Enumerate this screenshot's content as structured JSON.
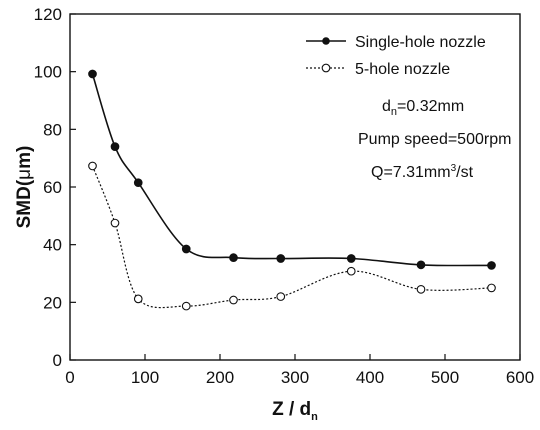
{
  "chart_data": {
    "type": "line",
    "xlabel_main": "Z / d",
    "xlabel_sub": "n",
    "ylabel_pre": "SMD(",
    "ylabel_mu": "μ",
    "ylabel_post": "m)",
    "xlim": [
      0,
      600
    ],
    "ylim": [
      0,
      120
    ],
    "xticks": [
      0,
      100,
      200,
      300,
      400,
      500,
      600
    ],
    "yticks": [
      0,
      20,
      40,
      60,
      80,
      100,
      120
    ],
    "grid": false,
    "legend_position": "top-right",
    "series": [
      {
        "name": "Single-hole nozzle",
        "marker": "filled-circle",
        "line_style": "solid",
        "color": "#111111",
        "x": [
          30,
          60,
          91,
          155,
          218,
          281,
          375,
          468,
          562
        ],
        "y": [
          99.2,
          74,
          61.5,
          38.5,
          35.5,
          35.2,
          35.2,
          33,
          32.8
        ]
      },
      {
        "name": "5-hole nozzle",
        "marker": "open-circle",
        "line_style": "dotted",
        "color": "#111111",
        "x": [
          30,
          60,
          91,
          155,
          218,
          281,
          375,
          468,
          562
        ],
        "y": [
          67.3,
          47.5,
          21.2,
          18.7,
          20.8,
          22,
          30.8,
          24.5,
          25
        ]
      }
    ],
    "annotations": {
      "dn_pre": "d",
      "dn_sub": "n",
      "dn_post": "=0.32mm",
      "pump": "Pump speed=500rpm",
      "q_pre": "Q=7.31mm",
      "q_sup": "3",
      "q_post": "/st"
    }
  }
}
